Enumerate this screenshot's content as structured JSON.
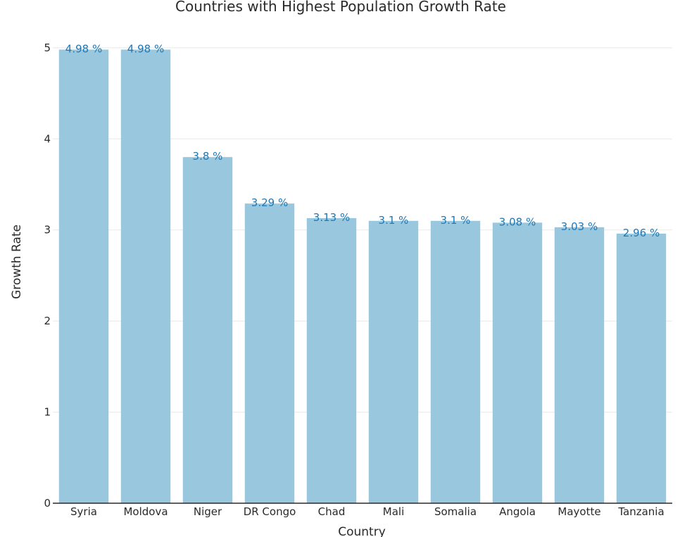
{
  "chart_data": {
    "type": "bar",
    "title": "Countries with Highest Population Growth Rate",
    "xlabel": "Country",
    "ylabel": "Growth Rate",
    "categories": [
      "Syria",
      "Moldova",
      "Niger",
      "DR Congo",
      "Chad",
      "Mali",
      "Somalia",
      "Angola",
      "Mayotte",
      "Tanzania"
    ],
    "values": [
      4.98,
      4.98,
      3.8,
      3.29,
      3.13,
      3.1,
      3.1,
      3.08,
      3.03,
      2.96
    ],
    "data_labels": [
      "4.98 %",
      "4.98 %",
      "3.8 %",
      "3.29 %",
      "3.13 %",
      "3.1 %",
      "3.1 %",
      "3.08 %",
      "3.03 %",
      "2.96 %"
    ],
    "yticks": [
      0,
      1,
      2,
      3,
      4,
      5
    ],
    "ylim": [
      0,
      5.2
    ],
    "grid": true,
    "colors": {
      "bar": "#99c8de",
      "label": "#1f77b4",
      "text": "#2a2a2a",
      "grid": "#e8e8e8"
    }
  }
}
